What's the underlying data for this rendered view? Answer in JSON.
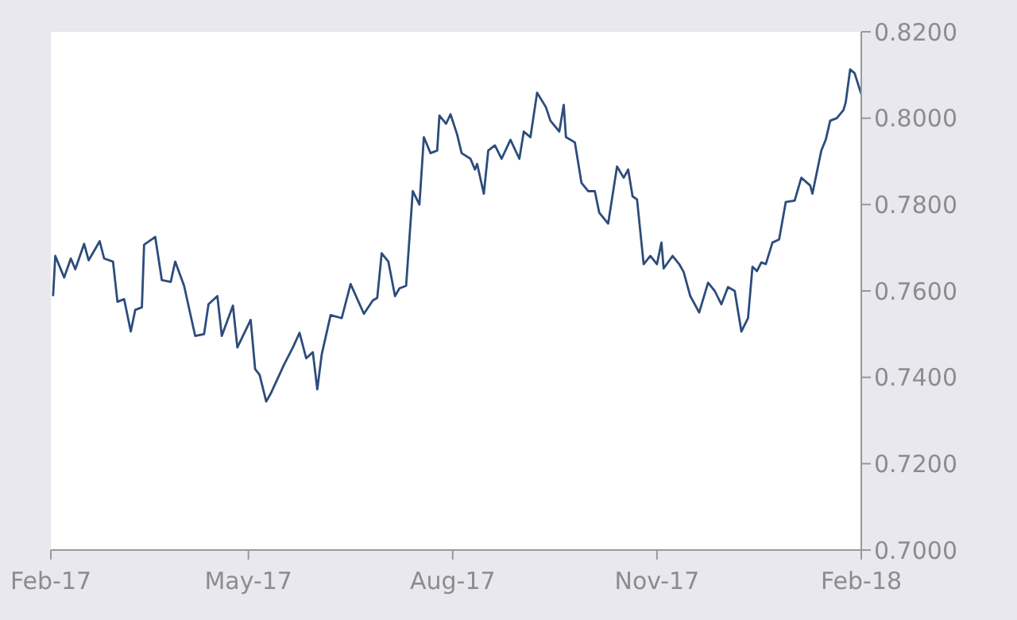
{
  "chart_data": {
    "type": "line",
    "series": [
      {
        "color": "#2c4c7c",
        "x": [
          "2017-02-02",
          "2017-02-03",
          "2017-02-07",
          "2017-02-10",
          "2017-02-12",
          "2017-02-16",
          "2017-02-18",
          "2017-02-23",
          "2017-02-25",
          "2017-03-01",
          "2017-03-03",
          "2017-03-06",
          "2017-03-09",
          "2017-03-11",
          "2017-03-14",
          "2017-03-15",
          "2017-03-20",
          "2017-03-23",
          "2017-03-27",
          "2017-03-29",
          "2017-04-02",
          "2017-04-07",
          "2017-04-11",
          "2017-04-13",
          "2017-04-17",
          "2017-04-19",
          "2017-04-24",
          "2017-04-26",
          "2017-05-02",
          "2017-05-04",
          "2017-05-06",
          "2017-05-09",
          "2017-05-11",
          "2017-05-17",
          "2017-05-21",
          "2017-05-24",
          "2017-05-27",
          "2017-05-30",
          "2017-06-01",
          "2017-06-03",
          "2017-06-07",
          "2017-06-12",
          "2017-06-16",
          "2017-06-22",
          "2017-06-26",
          "2017-06-28",
          "2017-06-30",
          "2017-07-03",
          "2017-07-06",
          "2017-07-08",
          "2017-07-11",
          "2017-07-14",
          "2017-07-17",
          "2017-07-19",
          "2017-07-22",
          "2017-07-25",
          "2017-07-26",
          "2017-07-29",
          "2017-07-31",
          "2017-08-03",
          "2017-08-05",
          "2017-08-09",
          "2017-08-11",
          "2017-08-12",
          "2017-08-15",
          "2017-08-17",
          "2017-08-20",
          "2017-08-23",
          "2017-08-27",
          "2017-08-31",
          "2017-09-02",
          "2017-09-05",
          "2017-09-08",
          "2017-09-12",
          "2017-09-14",
          "2017-09-18",
          "2017-09-20",
          "2017-09-21",
          "2017-09-25",
          "2017-09-28",
          "2017-10-01",
          "2017-10-04",
          "2017-10-06",
          "2017-10-10",
          "2017-10-14",
          "2017-10-17",
          "2017-10-19",
          "2017-10-21",
          "2017-10-23",
          "2017-10-26",
          "2017-10-29",
          "2017-11-01",
          "2017-11-03",
          "2017-11-04",
          "2017-11-08",
          "2017-11-11",
          "2017-11-13",
          "2017-11-16",
          "2017-11-20",
          "2017-11-24",
          "2017-11-27",
          "2017-11-30",
          "2017-12-03",
          "2017-12-06",
          "2017-12-09",
          "2017-12-12",
          "2017-12-14",
          "2017-12-16",
          "2017-12-18",
          "2017-12-20",
          "2017-12-23",
          "2017-12-26",
          "2017-12-29",
          "2018-01-02",
          "2018-01-05",
          "2018-01-09",
          "2018-01-10",
          "2018-01-14",
          "2018-01-16",
          "2018-01-18",
          "2018-01-21",
          "2018-01-24",
          "2018-01-25",
          "2018-01-27",
          "2018-01-29",
          "2018-02-01"
        ],
        "values": [
          0.7588,
          0.7681,
          0.7631,
          0.7675,
          0.765,
          0.7709,
          0.7671,
          0.7715,
          0.7675,
          0.7668,
          0.7575,
          0.7581,
          0.7506,
          0.7556,
          0.7562,
          0.7707,
          0.7725,
          0.7625,
          0.7621,
          0.7668,
          0.7612,
          0.7496,
          0.75,
          0.7569,
          0.7588,
          0.7496,
          0.7566,
          0.7469,
          0.7533,
          0.7419,
          0.7406,
          0.7344,
          0.7362,
          0.7429,
          0.7469,
          0.7503,
          0.7444,
          0.7458,
          0.7372,
          0.7453,
          0.7544,
          0.7537,
          0.7616,
          0.7547,
          0.7578,
          0.7584,
          0.7687,
          0.7668,
          0.7588,
          0.7606,
          0.7612,
          0.7831,
          0.78,
          0.7956,
          0.7919,
          0.7925,
          0.8006,
          0.7987,
          0.8009,
          0.7962,
          0.7919,
          0.7906,
          0.7881,
          0.7894,
          0.7825,
          0.7925,
          0.7937,
          0.7906,
          0.795,
          0.7906,
          0.7969,
          0.7956,
          0.8059,
          0.8025,
          0.7994,
          0.7969,
          0.8031,
          0.7956,
          0.7944,
          0.785,
          0.7831,
          0.7831,
          0.7781,
          0.7756,
          0.7888,
          0.7862,
          0.7881,
          0.7819,
          0.7812,
          0.7662,
          0.7681,
          0.7662,
          0.7712,
          0.7652,
          0.7681,
          0.7662,
          0.7644,
          0.7588,
          0.755,
          0.7619,
          0.76,
          0.7569,
          0.7609,
          0.76,
          0.7506,
          0.7537,
          0.7656,
          0.7646,
          0.7666,
          0.7662,
          0.7712,
          0.7719,
          0.7806,
          0.7809,
          0.7862,
          0.7844,
          0.7825,
          0.7925,
          0.795,
          0.7994,
          0.8,
          0.8019,
          0.8037,
          0.8113,
          0.8104,
          0.8056
        ]
      }
    ],
    "xlim": [
      "2017-02-01",
      "2018-02-01"
    ],
    "xticks": [
      {
        "value": "2017-02-01",
        "label": "Feb-17"
      },
      {
        "value": "2017-05-01",
        "label": "May-17"
      },
      {
        "value": "2017-08-01",
        "label": "Aug-17"
      },
      {
        "value": "2017-11-01",
        "label": "Nov-17"
      },
      {
        "value": "2018-02-01",
        "label": "Feb-18"
      }
    ],
    "ylim": [
      0.7,
      0.82
    ],
    "yticks": [
      {
        "value": 0.7,
        "label": "0.7000"
      },
      {
        "value": 0.72,
        "label": "0.7200"
      },
      {
        "value": 0.74,
        "label": "0.7400"
      },
      {
        "value": 0.76,
        "label": "0.7600"
      },
      {
        "value": 0.78,
        "label": "0.7800"
      },
      {
        "value": 0.8,
        "label": "0.8000"
      },
      {
        "value": 0.82,
        "label": "0.8200"
      }
    ],
    "grid": false,
    "legend": false,
    "marker": "none",
    "line_style": "solid"
  }
}
